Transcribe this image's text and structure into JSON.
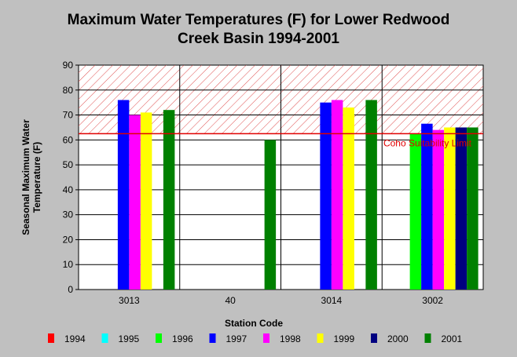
{
  "chart_data": {
    "type": "bar",
    "title_line1": "Maximum Water Temperatures (F) for Lower Redwood",
    "title_line2": "Creek Basin 1994-2001",
    "xlabel": "Station Code",
    "ylabel_line1": "Seasonal Maximum Water",
    "ylabel_line2": "Temperature  (F)",
    "ylim": [
      0,
      90
    ],
    "yticks": [
      0,
      10,
      20,
      30,
      40,
      50,
      60,
      70,
      80,
      90
    ],
    "grid": true,
    "legend_position": "bottom",
    "categories": [
      "3013",
      "40",
      "3014",
      "3002"
    ],
    "series": [
      {
        "name": "1994",
        "color": "#ff0000",
        "values": [
          null,
          null,
          null,
          null
        ]
      },
      {
        "name": "1995",
        "color": "#00ffff",
        "values": [
          null,
          null,
          null,
          null
        ]
      },
      {
        "name": "1996",
        "color": "#00ff00",
        "values": [
          null,
          null,
          null,
          62.5
        ]
      },
      {
        "name": "1997",
        "color": "#0000ff",
        "values": [
          76,
          null,
          75,
          66.5
        ]
      },
      {
        "name": "1998",
        "color": "#ff00ff",
        "values": [
          70,
          null,
          76,
          64
        ]
      },
      {
        "name": "1999",
        "color": "#ffff00",
        "values": [
          71,
          null,
          73,
          65
        ]
      },
      {
        "name": "2000",
        "color": "#000080",
        "values": [
          null,
          null,
          null,
          65
        ]
      },
      {
        "name": "2001",
        "color": "#008000",
        "values": [
          72,
          60,
          76,
          65
        ]
      }
    ],
    "threshold": {
      "value": 62.5,
      "label": "Coho Suitability Limit",
      "color": "#e00000"
    },
    "colors": {
      "background": "#c0c0c0",
      "plot_area": "#ffffff",
      "grid": "#000000",
      "hatch": "#e05050"
    }
  }
}
